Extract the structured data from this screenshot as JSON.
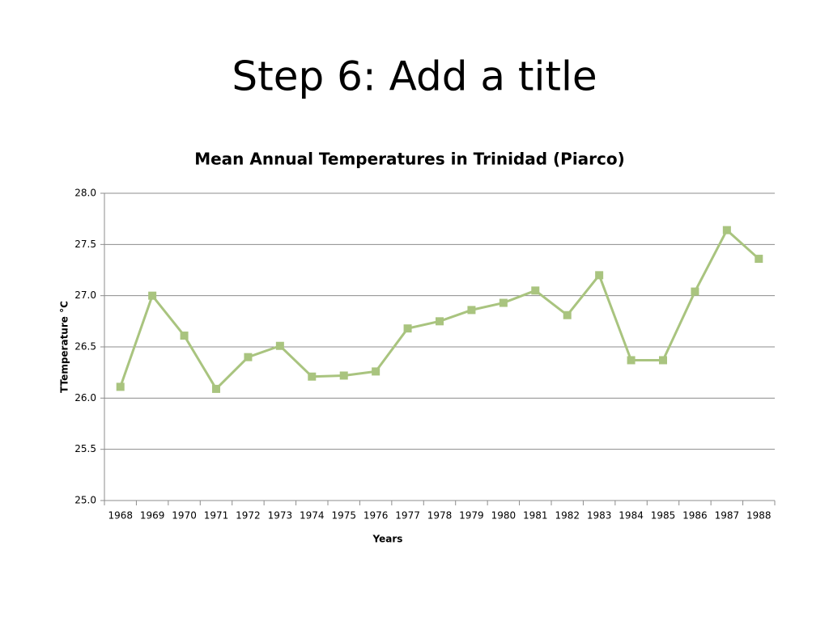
{
  "slide": {
    "title": "Step 6: Add a title"
  },
  "chart_data": {
    "type": "line",
    "title": "Mean Annual Temperatures in Trinidad (Piarco)",
    "x_label": "Years",
    "y_label": "TTemperature °C",
    "categories": [
      "1968",
      "1969",
      "1970",
      "1971",
      "1972",
      "1973",
      "1974",
      "1975",
      "1976",
      "1977",
      "1978",
      "1979",
      "1980",
      "1981",
      "1982",
      "1983",
      "1984",
      "1985",
      "1986",
      "1987",
      "1988"
    ],
    "series": [
      {
        "color": "#a9c47f",
        "values": [
          26.11,
          27.0,
          26.61,
          26.09,
          26.4,
          26.51,
          26.21,
          26.22,
          26.26,
          26.68,
          26.75,
          26.86,
          26.93,
          27.05,
          26.81,
          27.2,
          26.37,
          26.37,
          27.04,
          27.64,
          27.36
        ]
      }
    ],
    "ylim": [
      25,
      28
    ],
    "yticks": [
      {
        "value": 25,
        "label": "25.0"
      },
      25.5,
      {
        "value": 26,
        "label": "26.0"
      },
      26.5,
      {
        "value": 27,
        "label": "27.0"
      },
      27.5,
      {
        "value": 28,
        "label": "28.0"
      }
    ],
    "grid": true
  }
}
